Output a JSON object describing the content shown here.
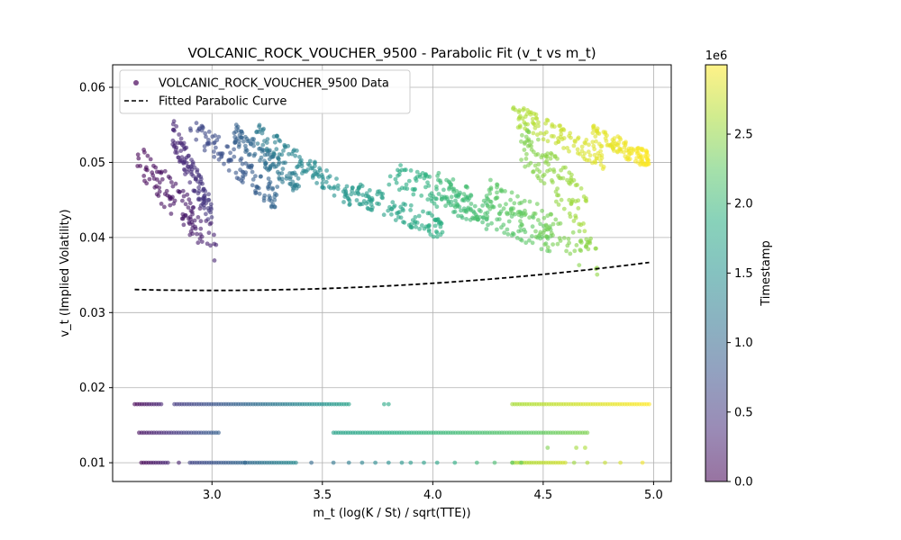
{
  "chart_data": {
    "type": "scatter",
    "title": "VOLCANIC_ROCK_VOUCHER_9500 - Parabolic Fit (v_t vs m_t)",
    "xlabel": "m_t (log(K / St) / sqrt(TTE))",
    "ylabel": "v_t (Implied Volatility)",
    "xlim": [
      2.55,
      5.08
    ],
    "ylim": [
      0.0075,
      0.063
    ],
    "xticks": [
      "3.0",
      "3.5",
      "4.0",
      "4.5",
      "5.0"
    ],
    "yticks": [
      "0.01",
      "0.02",
      "0.03",
      "0.04",
      "0.05",
      "0.06"
    ],
    "grid": true,
    "legend_position": "top-left",
    "colormap": "viridis",
    "colorbar": {
      "label": "Timestamp",
      "scale_label": "1e6",
      "ticks": [
        "0.0",
        "0.5",
        "1.0",
        "1.5",
        "2.0",
        "2.5"
      ],
      "range": [
        0,
        2.999
      ]
    },
    "series": [
      {
        "name": "VOLCANIC_ROCK_VOUCHER_9500 Data",
        "kind": "scatter",
        "clusters": [
          {
            "x": [
              2.66,
              3.02
            ],
            "y": [
              0.0505,
              0.039
            ],
            "t": [
              0.0,
              0.3
            ],
            "band": 0.005
          },
          {
            "x": [
              2.82,
              3.0
            ],
            "y": [
              0.054,
              0.043
            ],
            "t": [
              0.3,
              0.5
            ],
            "band": 0.004
          },
          {
            "x": [
              2.9,
              3.3
            ],
            "y": [
              0.055,
              0.045
            ],
            "t": [
              0.6,
              1.0
            ],
            "band": 0.0035
          },
          {
            "x": [
              3.1,
              3.4
            ],
            "y": [
              0.054,
              0.047
            ],
            "t": [
              0.9,
              1.3
            ],
            "band": 0.003
          },
          {
            "x": [
              3.2,
              3.65
            ],
            "y": [
              0.054,
              0.045
            ],
            "t": [
              1.2,
              1.6
            ],
            "band": 0.003
          },
          {
            "x": [
              3.65,
              4.05
            ],
            "y": [
              0.046,
              0.041
            ],
            "t": [
              1.6,
              1.9
            ],
            "band": 0.003
          },
          {
            "x": [
              3.8,
              4.25
            ],
            "y": [
              0.049,
              0.043
            ],
            "t": [
              1.8,
              2.1
            ],
            "band": 0.004
          },
          {
            "x": [
              4.0,
              4.55
            ],
            "y": [
              0.047,
              0.0395
            ],
            "t": [
              2.0,
              2.3
            ],
            "band": 0.004
          },
          {
            "x": [
              4.25,
              4.75
            ],
            "y": [
              0.046,
              0.037
            ],
            "t": [
              2.2,
              2.5
            ],
            "band": 0.005
          },
          {
            "x": [
              4.4,
              4.7
            ],
            "y": [
              0.053,
              0.043
            ],
            "t": [
              2.4,
              2.6
            ],
            "band": 0.006
          },
          {
            "x": [
              4.36,
              4.78
            ],
            "y": [
              0.0565,
              0.0505
            ],
            "t": [
              2.6,
              2.9
            ],
            "band": 0.003
          },
          {
            "x": [
              4.72,
              4.98
            ],
            "y": [
              0.054,
              0.0502
            ],
            "t": [
              2.85,
              3.0
            ],
            "band": 0.0025
          }
        ],
        "floor_lines": [
          {
            "y": 0.0178,
            "segments": [
              [
                2.65,
                2.77,
                0.0,
                0.3
              ],
              [
                2.83,
                3.62,
                0.5,
                1.7
              ],
              [
                4.36,
                4.98,
                2.6,
                3.0
              ]
            ],
            "dots": [
              [
                3.78,
                1.8
              ],
              [
                3.8,
                1.8
              ]
            ]
          },
          {
            "y": 0.014,
            "segments": [
              [
                2.67,
                3.03,
                0.1,
                0.9
              ],
              [
                3.55,
                4.7,
                1.7,
                2.4
              ]
            ]
          },
          {
            "y": 0.01,
            "segments": [
              [
                2.68,
                2.8,
                0.0,
                0.3
              ],
              [
                2.9,
                3.15,
                0.6,
                1.0
              ],
              [
                3.15,
                3.38,
                1.0,
                1.4
              ],
              [
                4.36,
                4.6,
                2.6,
                2.8
              ]
            ],
            "scattered": [
              2.85,
              3.45,
              3.55,
              3.62,
              3.68,
              3.74,
              3.8,
              3.86,
              3.9,
              3.96,
              4.02,
              4.1,
              4.2,
              4.28,
              4.36,
              4.4,
              4.64,
              4.7,
              4.78,
              4.85,
              4.95
            ]
          },
          {
            "y": 0.012,
            "scattered": [
              4.52,
              4.65,
              4.69
            ]
          }
        ]
      },
      {
        "name": "Fitted Parabolic Curve",
        "kind": "line",
        "style": "dashed",
        "color": "#000000",
        "coefficients": {
          "a": 0.00095,
          "b": -0.0057,
          "c": 0.0415
        },
        "x_range": [
          2.65,
          4.98
        ]
      }
    ]
  }
}
